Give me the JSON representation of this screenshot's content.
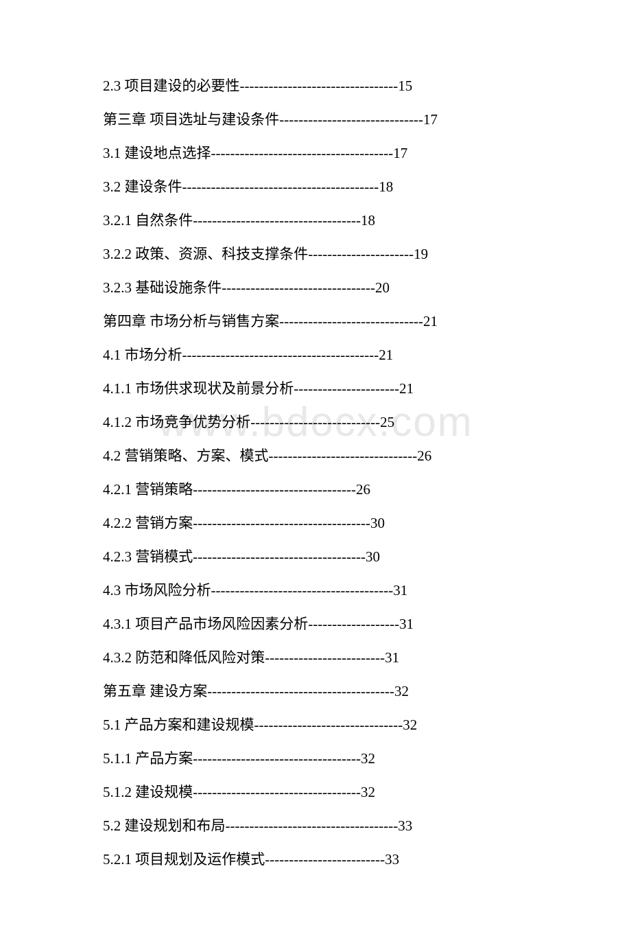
{
  "watermark": "www.bdocx.com",
  "toc_entries": [
    {
      "text": "2.3 项目建设的必要性",
      "leader": "---------------------------------",
      "page": "15"
    },
    {
      "text": "第三章 项目选址与建设条件",
      "leader": "------------------------------",
      "page": "17"
    },
    {
      "text": "3.1 建设地点选择",
      "leader": "--------------------------------------",
      "page": "17"
    },
    {
      "text": "3.2 建设条件",
      "leader": "-----------------------------------------",
      "page": "18"
    },
    {
      "text": "3.2.1 自然条件",
      "leader": "-----------------------------------",
      "page": "18"
    },
    {
      "text": "3.2.2 政策、资源、科技支撑条件",
      "leader": "----------------------",
      "page": "19"
    },
    {
      "text": "3.2.3 基础设施条件",
      "leader": "--------------------------------",
      "page": "20"
    },
    {
      "text": "第四章 市场分析与销售方案",
      "leader": "------------------------------",
      "page": "21"
    },
    {
      "text": "4.1 市场分析",
      "leader": "-----------------------------------------",
      "page": "21"
    },
    {
      "text": "4.1.1 市场供求现状及前景分析",
      "leader": "----------------------",
      "page": "21"
    },
    {
      "text": "4.1.2 市场竞争优势分析",
      "leader": "---------------------------",
      "page": "25"
    },
    {
      "text": "4.2 营销策略、方案、模式",
      "leader": "-------------------------------",
      "page": "26"
    },
    {
      "text": "4.2.1 营销策略",
      "leader": "----------------------------------",
      "page": "26"
    },
    {
      "text": "4.2.2 营销方案",
      "leader": "-------------------------------------",
      "page": "30"
    },
    {
      "text": "4.2.3 营销模式",
      "leader": "------------------------------------",
      "page": "30"
    },
    {
      "text": "4.3 市场风险分析",
      "leader": "--------------------------------------",
      "page": "31"
    },
    {
      "text": "4.3.1 项目产品市场风险因素分析",
      "leader": "-------------------",
      "page": "31"
    },
    {
      "text": "4.3.2 防范和降低风险对策",
      "leader": "-------------------------",
      "page": "31"
    },
    {
      "text": "第五章 建设方案",
      "leader": "---------------------------------------",
      "page": "32"
    },
    {
      "text": "5.1 产品方案和建设规模",
      "leader": "-------------------------------",
      "page": "32"
    },
    {
      "text": "5.1.1 产品方案",
      "leader": "-----------------------------------",
      "page": "32"
    },
    {
      "text": "5.1.2 建设规模",
      "leader": "-----------------------------------",
      "page": "32"
    },
    {
      "text": "5.2 建设规划和布局",
      "leader": "------------------------------------",
      "page": "33"
    },
    {
      "text": "5.2.1 项目规划及运作模式",
      "leader": "-------------------------",
      "page": "33"
    }
  ]
}
